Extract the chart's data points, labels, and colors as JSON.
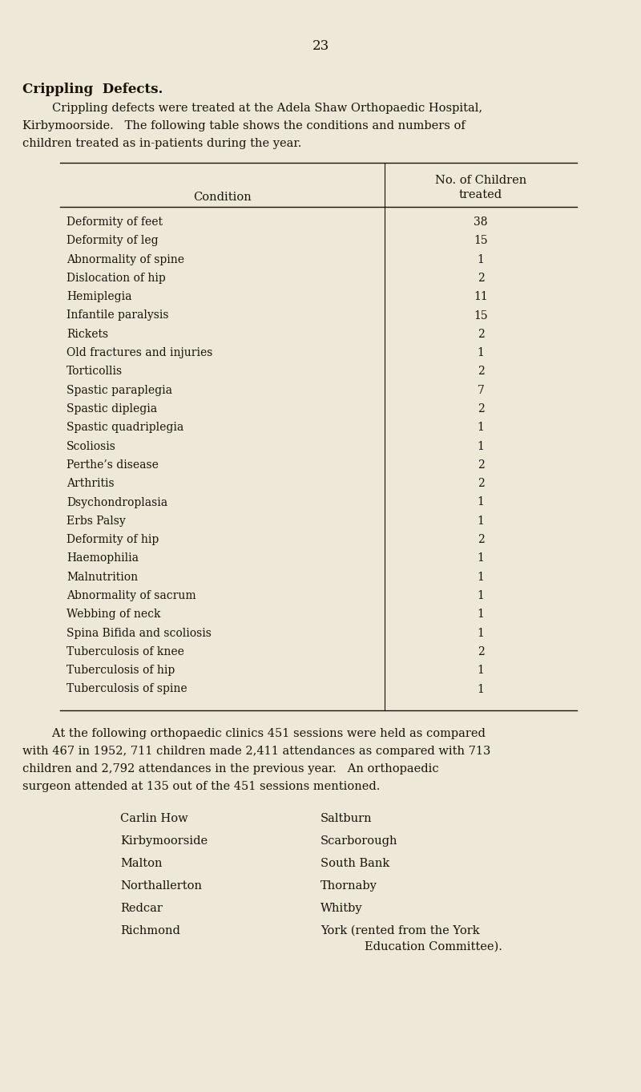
{
  "page_number": "23",
  "bg_color": "#ede8d8",
  "text_color": "#1a1208",
  "title": "Crippling  Defects.",
  "col1_header": "Condition",
  "col2_header_line1": "No. of Children",
  "col2_header_line2": "treated",
  "table_data": [
    [
      "Deformity of feet",
      "38"
    ],
    [
      "Deformity of leg",
      "15"
    ],
    [
      "Abnormality of spine",
      "1"
    ],
    [
      "Dislocation of hip",
      "2"
    ],
    [
      "Hemiplegia",
      "11"
    ],
    [
      "Infantile paralysis",
      "15"
    ],
    [
      "Rickets",
      "2"
    ],
    [
      "Old fractures and injuries",
      "1"
    ],
    [
      "Torticollis",
      "2"
    ],
    [
      "Spastic paraplegia",
      "7"
    ],
    [
      "Spastic diplegia",
      "2"
    ],
    [
      "Spastic quadriplegia",
      "1"
    ],
    [
      "Scoliosis",
      "1"
    ],
    [
      "Perthe’s disease",
      "2"
    ],
    [
      "Arthritis",
      "2"
    ],
    [
      "Dsychondroplasia",
      "1"
    ],
    [
      "Erbs Palsy",
      "1"
    ],
    [
      "Deformity of hip",
      "2"
    ],
    [
      "Haemophilia",
      "1"
    ],
    [
      "Malnutrition",
      "1"
    ],
    [
      "Abnormality of sacrum",
      "1"
    ],
    [
      "Webbing of neck",
      "1"
    ],
    [
      "Spina Bifida and scoliosis",
      "1"
    ],
    [
      "Tuberculosis of knee",
      "2"
    ],
    [
      "Tuberculosis of hip",
      "1"
    ],
    [
      "Tuberculosis of spine",
      "1"
    ]
  ],
  "clinics_col1": [
    "Carlin How",
    "Kirbymoorside",
    "Malton",
    "Northallerton",
    "Redcar",
    "Richmond"
  ],
  "clinics_col2": [
    "Saltburn",
    "Scarborough",
    "South Bank",
    "Thornaby",
    "Whitby",
    "York (rented from the York",
    "Education Committee)."
  ]
}
